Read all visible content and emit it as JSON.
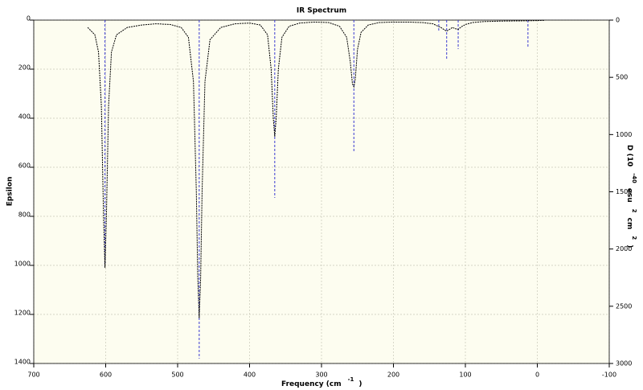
{
  "chart_data": {
    "type": "line",
    "title": "IR Spectrum",
    "x_label": [
      "Frequency (cm",
      "-1",
      ")"
    ],
    "y_label": "Epsilon",
    "y2_label": [
      "D (10",
      "-40",
      "esu",
      "2",
      "cm",
      "2",
      ")"
    ],
    "xlim": [
      700,
      -100
    ],
    "xticks": [
      700,
      600,
      500,
      400,
      300,
      200,
      100,
      0,
      -100
    ],
    "ylim": [
      0,
      1400
    ],
    "yticks": [
      0,
      200,
      400,
      600,
      800,
      1000,
      1200,
      1400
    ],
    "y2lim": [
      0,
      3000
    ],
    "y2ticks": [
      0,
      500,
      1000,
      1500,
      2000,
      2500,
      3000
    ],
    "y_inverted": true,
    "grid": true,
    "background": "#fdfdf0",
    "series": [
      {
        "type": "line",
        "color": "#000000",
        "x": [
          625,
          615,
          610,
          606,
          603,
          601,
          599,
          596,
          592,
          585,
          570,
          550,
          530,
          510,
          495,
          485,
          478,
          474,
          472,
          470,
          468,
          466,
          462,
          455,
          440,
          420,
          400,
          385,
          375,
          370,
          367,
          365,
          363,
          360,
          355,
          345,
          330,
          310,
          290,
          275,
          265,
          260,
          257,
          255,
          253,
          250,
          245,
          235,
          220,
          200,
          180,
          160,
          145,
          138,
          134,
          130,
          126,
          122,
          118,
          114,
          110,
          106,
          100,
          90,
          75,
          50,
          20,
          0,
          -10
        ],
        "values": [
          30,
          60,
          130,
          350,
          800,
          1010,
          800,
          350,
          130,
          60,
          30,
          20,
          15,
          18,
          30,
          70,
          250,
          700,
          1050,
          1215,
          1050,
          700,
          250,
          80,
          30,
          15,
          12,
          20,
          60,
          200,
          400,
          475,
          400,
          200,
          70,
          25,
          12,
          8,
          10,
          25,
          70,
          170,
          260,
          272,
          240,
          120,
          50,
          20,
          10,
          8,
          8,
          10,
          15,
          25,
          30,
          38,
          45,
          38,
          30,
          35,
          38,
          28,
          18,
          10,
          6,
          4,
          3,
          2,
          1
        ]
      },
      {
        "type": "stick",
        "axis": "y2",
        "color": "#3a3ad0",
        "x": [
          601,
          470,
          365,
          255,
          137,
          126,
          110,
          13
        ],
        "values": [
          2143,
          2958,
          1553,
          1159,
          105,
          344,
          253,
          246
        ]
      }
    ]
  }
}
